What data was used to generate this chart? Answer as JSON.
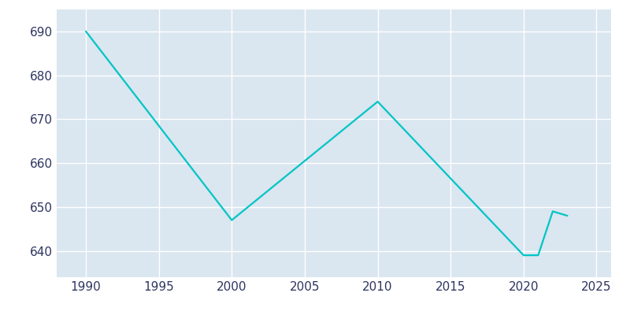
{
  "years": [
    1990,
    2000,
    2010,
    2020,
    2021,
    2022,
    2023
  ],
  "population": [
    690,
    647,
    674,
    639,
    639,
    649,
    648
  ],
  "line_color": "#00C5C5",
  "bg_color": "#DAE6F0",
  "fig_bg_color": "#FFFFFF",
  "grid_color": "#FFFFFF",
  "tick_label_color": "#2D3561",
  "xlim": [
    1988,
    2026
  ],
  "ylim": [
    634,
    695
  ],
  "yticks": [
    640,
    650,
    660,
    670,
    680,
    690
  ],
  "xticks": [
    1990,
    1995,
    2000,
    2005,
    2010,
    2015,
    2020,
    2025
  ],
  "line_width": 1.6,
  "figsize": [
    8.0,
    4.0
  ],
  "dpi": 100
}
